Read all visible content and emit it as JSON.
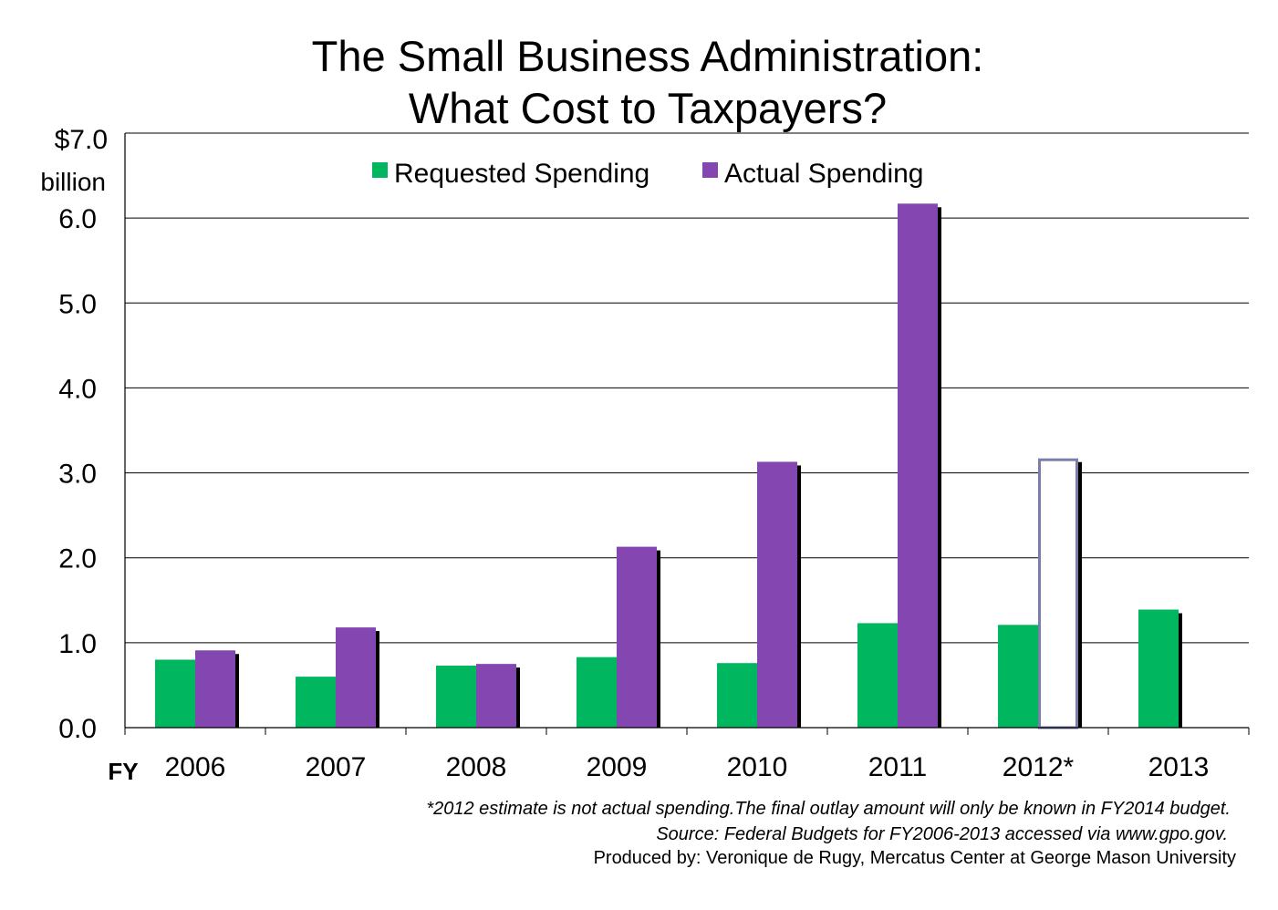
{
  "chart_data": {
    "type": "bar",
    "title_line1": "The Small Business Administration:",
    "title_line2": "What Cost to Taxpayers?",
    "y_unit_top": "$7.0",
    "y_unit_label": "billion",
    "x_prefix": "FY",
    "ylim": [
      0,
      7
    ],
    "yticks": [
      "0.0",
      "1.0",
      "2.0",
      "3.0",
      "4.0",
      "5.0",
      "6.0"
    ],
    "grid": true,
    "legend_position": "top",
    "categories": [
      "2006",
      "2007",
      "2008",
      "2009",
      "2010",
      "2011",
      "2012*",
      "2013"
    ],
    "series": [
      {
        "name": "Requested Spending",
        "color": "#00b760",
        "values": [
          0.8,
          0.6,
          0.73,
          0.83,
          0.76,
          1.23,
          1.21,
          1.39
        ]
      },
      {
        "name": "Actual Spending",
        "color": "#8446b0",
        "values": [
          0.91,
          1.18,
          0.75,
          2.13,
          3.13,
          6.17,
          3.17,
          null
        ],
        "estimate_index": 6,
        "estimate_color": "#7b7fa8"
      }
    ],
    "footnotes": [
      "*2012 estimate is not actual spending.The final outlay amount will only be known in  FY2014 budget.",
      "Source: Federal Budgets for FY2006-2013 accessed via www.gpo.gov."
    ],
    "credit": "Produced by: Veronique de Rugy, Mercatus Center at George Mason University"
  }
}
